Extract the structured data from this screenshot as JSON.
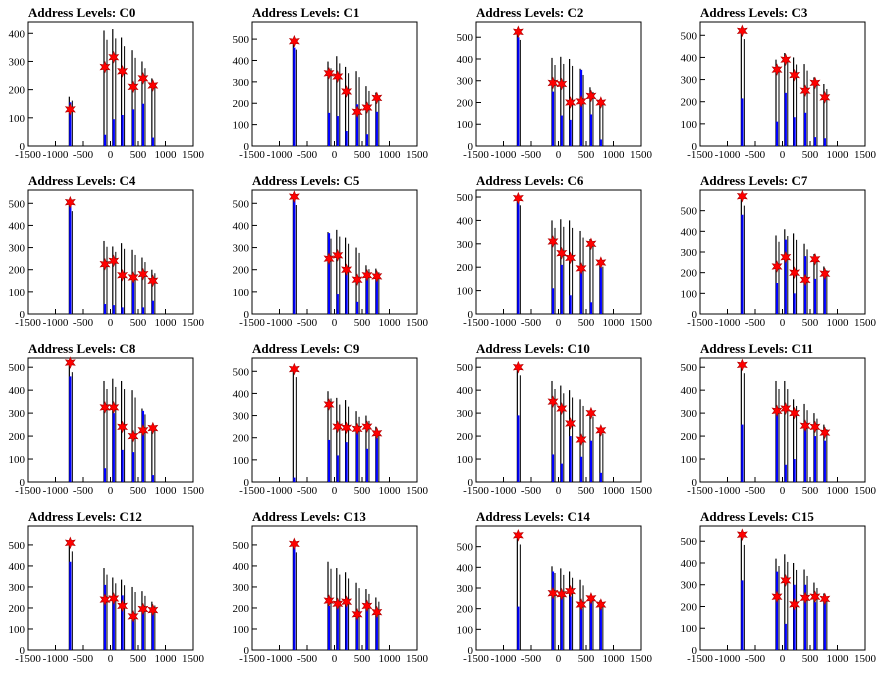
{
  "layout": {
    "rows": 4,
    "cols": 4
  },
  "style": {
    "frame_color": "#000000",
    "hist_black": "#000000",
    "hist_blue": "#0000ff",
    "marker_color": "#ff0000"
  },
  "chart_data": [
    {
      "type": "bar",
      "title": "Address Levels: C0",
      "xlim": [
        -1500,
        1500
      ],
      "ylim": [
        0,
        440
      ],
      "x_ticks": [
        -1500,
        -1000,
        -500,
        0,
        500,
        1000,
        1500
      ],
      "x_tick_labels": [
        "-1500",
        "-1000",
        "-500",
        "0",
        "500",
        "1000",
        "1500"
      ],
      "y_ticks": [
        0,
        100,
        200,
        300,
        400
      ],
      "peaks_x": [
        -730,
        -100,
        60,
        220,
        410,
        590,
        770
      ],
      "black_bars": [
        175,
        410,
        415,
        385,
        340,
        300,
        240
      ],
      "blue_bars": [
        155,
        40,
        95,
        110,
        130,
        150,
        30
      ],
      "markers": {
        "x": [
          -730,
          -100,
          60,
          220,
          410,
          590,
          770
        ],
        "y": [
          130,
          280,
          315,
          265,
          210,
          240,
          215
        ]
      }
    },
    {
      "type": "bar",
      "title": "Address Levels: C1",
      "xlim": [
        -1500,
        1500
      ],
      "ylim": [
        0,
        580
      ],
      "x_ticks": [
        -1500,
        -1000,
        -500,
        0,
        500,
        1000,
        1500
      ],
      "x_tick_labels": [
        "-1500",
        "-1000",
        "-500",
        "0",
        "500",
        "1000",
        "1500"
      ],
      "y_ticks": [
        0,
        100,
        200,
        300,
        400,
        500
      ],
      "peaks_x": [
        -730,
        -100,
        60,
        220,
        410,
        590,
        770
      ],
      "black_bars": [
        490,
        395,
        420,
        370,
        350,
        280,
        250
      ],
      "blue_bars": [
        460,
        155,
        140,
        70,
        195,
        55,
        160
      ],
      "markers": {
        "x": [
          -730,
          -100,
          60,
          220,
          410,
          590,
          770
        ],
        "y": [
          490,
          340,
          325,
          255,
          160,
          180,
          225
        ]
      }
    },
    {
      "type": "bar",
      "title": "Address Levels: C2",
      "xlim": [
        -1500,
        1500
      ],
      "ylim": [
        0,
        570
      ],
      "x_ticks": [
        -1500,
        -1000,
        -500,
        0,
        500,
        1000,
        1500
      ],
      "x_tick_labels": [
        "-1500",
        "-1000",
        "-500",
        "0",
        "500",
        "1000",
        "1500"
      ],
      "y_ticks": [
        0,
        100,
        200,
        300,
        400,
        500
      ],
      "peaks_x": [
        -730,
        -100,
        60,
        220,
        410,
        590,
        770
      ],
      "black_bars": [
        530,
        405,
        410,
        400,
        355,
        270,
        215
      ],
      "blue_bars": [
        500,
        250,
        140,
        120,
        350,
        145,
        30
      ],
      "markers": {
        "x": [
          -730,
          -100,
          60,
          220,
          410,
          590,
          770
        ],
        "y": [
          525,
          290,
          285,
          200,
          205,
          230,
          200
        ]
      }
    },
    {
      "type": "bar",
      "title": "Address Levels: C3",
      "xlim": [
        -1500,
        1500
      ],
      "ylim": [
        0,
        560
      ],
      "x_ticks": [
        -1500,
        -1000,
        -500,
        0,
        500,
        1000,
        1500
      ],
      "x_tick_labels": [
        "-1500",
        "-1000",
        "-500",
        "0",
        "500",
        "1000",
        "1500"
      ],
      "y_ticks": [
        0,
        100,
        200,
        300,
        400,
        500
      ],
      "peaks_x": [
        -730,
        -100,
        60,
        220,
        410,
        590,
        770
      ],
      "black_bars": [
        525,
        390,
        420,
        400,
        370,
        310,
        280
      ],
      "blue_bars": [
        215,
        110,
        240,
        130,
        150,
        40,
        35
      ],
      "markers": {
        "x": [
          -730,
          -100,
          60,
          220,
          410,
          590,
          770
        ],
        "y": [
          520,
          345,
          390,
          320,
          250,
          285,
          220
        ]
      }
    },
    {
      "type": "bar",
      "title": "Address Levels: C4",
      "xlim": [
        -1500,
        1500
      ],
      "ylim": [
        0,
        560
      ],
      "x_ticks": [
        -1500,
        -1000,
        -500,
        0,
        500,
        1000,
        1500
      ],
      "x_tick_labels": [
        "-1500",
        "-1000",
        "-500",
        "0",
        "500",
        "1000",
        "1500"
      ],
      "y_ticks": [
        0,
        100,
        200,
        300,
        400,
        500
      ],
      "peaks_x": [
        -730,
        -100,
        60,
        220,
        410,
        590,
        770
      ],
      "black_bars": [
        505,
        330,
        305,
        320,
        290,
        255,
        200
      ],
      "blue_bars": [
        495,
        45,
        40,
        30,
        150,
        30,
        60
      ],
      "markers": {
        "x": [
          -730,
          -100,
          60,
          220,
          410,
          590,
          770
        ],
        "y": [
          505,
          225,
          240,
          175,
          165,
          180,
          150
        ]
      }
    },
    {
      "type": "bar",
      "title": "Address Levels: C5",
      "xlim": [
        -1500,
        1500
      ],
      "ylim": [
        0,
        560
      ],
      "x_ticks": [
        -1500,
        -1000,
        -500,
        0,
        500,
        1000,
        1500
      ],
      "x_tick_labels": [
        "-1500",
        "-1000",
        "-500",
        "0",
        "500",
        "1000",
        "1500"
      ],
      "y_ticks": [
        0,
        100,
        200,
        300,
        400,
        500
      ],
      "peaks_x": [
        -730,
        -100,
        60,
        220,
        410,
        590,
        770
      ],
      "black_bars": [
        535,
        370,
        380,
        345,
        300,
        220,
        205
      ],
      "blue_bars": [
        520,
        365,
        90,
        185,
        55,
        170,
        160
      ],
      "markers": {
        "x": [
          -730,
          -100,
          60,
          220,
          410,
          590,
          770
        ],
        "y": [
          530,
          250,
          265,
          200,
          155,
          175,
          170
        ]
      }
    },
    {
      "type": "bar",
      "title": "Address Levels: C6",
      "xlim": [
        -1500,
        1500
      ],
      "ylim": [
        0,
        530
      ],
      "x_ticks": [
        -1500,
        -1000,
        -500,
        0,
        500,
        1000,
        1500
      ],
      "x_tick_labels": [
        "-1500",
        "-1000",
        "-500",
        "0",
        "500",
        "1000",
        "1500"
      ],
      "y_ticks": [
        0,
        100,
        200,
        300,
        400,
        500
      ],
      "peaks_x": [
        -730,
        -100,
        60,
        220,
        410,
        590,
        770
      ],
      "black_bars": [
        505,
        400,
        405,
        400,
        355,
        320,
        220
      ],
      "blue_bars": [
        495,
        110,
        210,
        80,
        180,
        50,
        200
      ],
      "markers": {
        "x": [
          -730,
          -100,
          60,
          220,
          410,
          590,
          770
        ],
        "y": [
          495,
          310,
          260,
          240,
          195,
          300,
          220
        ]
      }
    },
    {
      "type": "bar",
      "title": "Address Levels: C7",
      "xlim": [
        -1500,
        1500
      ],
      "ylim": [
        0,
        600
      ],
      "x_ticks": [
        -1500,
        -1000,
        -500,
        0,
        500,
        1000,
        1500
      ],
      "x_tick_labels": [
        "-1500",
        "-1000",
        "-500",
        "0",
        "500",
        "1000",
        "1500"
      ],
      "y_ticks": [
        0,
        100,
        200,
        300,
        400,
        500
      ],
      "peaks_x": [
        -730,
        -100,
        60,
        220,
        410,
        590,
        770
      ],
      "black_bars": [
        570,
        380,
        410,
        390,
        340,
        290,
        230
      ],
      "blue_bars": [
        480,
        150,
        360,
        100,
        280,
        170,
        200
      ],
      "markers": {
        "x": [
          -730,
          -100,
          60,
          220,
          410,
          590,
          770
        ],
        "y": [
          570,
          230,
          275,
          200,
          165,
          265,
          195
        ]
      }
    },
    {
      "type": "bar",
      "title": "Address Levels: C8",
      "xlim": [
        -1500,
        1500
      ],
      "ylim": [
        0,
        540
      ],
      "x_ticks": [
        -1500,
        -1000,
        -500,
        0,
        500,
        1000,
        1500
      ],
      "x_tick_labels": [
        "-1500",
        "-1000",
        "-500",
        "0",
        "500",
        "1000",
        "1500"
      ],
      "y_ticks": [
        0,
        100,
        200,
        300,
        400,
        500
      ],
      "peaks_x": [
        -730,
        -100,
        60,
        220,
        410,
        590,
        770
      ],
      "black_bars": [
        520,
        440,
        450,
        440,
        400,
        320,
        245
      ],
      "blue_bars": [
        460,
        60,
        300,
        140,
        130,
        310,
        30
      ],
      "markers": {
        "x": [
          -730,
          -100,
          60,
          220,
          410,
          590,
          770
        ],
        "y": [
          520,
          325,
          325,
          240,
          200,
          225,
          235
        ]
      }
    },
    {
      "type": "bar",
      "title": "Address Levels: C9",
      "xlim": [
        -1500,
        1500
      ],
      "ylim": [
        0,
        560
      ],
      "x_ticks": [
        -1500,
        -1000,
        -500,
        0,
        500,
        1000,
        1500
      ],
      "x_tick_labels": [
        "-1500",
        "-1000",
        "-500",
        "0",
        "500",
        "1000",
        "1500"
      ],
      "y_ticks": [
        0,
        100,
        200,
        300,
        400,
        500
      ],
      "peaks_x": [
        -730,
        -100,
        60,
        220,
        410,
        590,
        770
      ],
      "black_bars": [
        515,
        410,
        380,
        370,
        320,
        300,
        250
      ],
      "blue_bars": [
        20,
        190,
        120,
        180,
        240,
        150,
        200
      ],
      "markers": {
        "x": [
          -730,
          -100,
          60,
          220,
          410,
          590,
          770
        ],
        "y": [
          510,
          350,
          250,
          245,
          240,
          250,
          220
        ]
      }
    },
    {
      "type": "bar",
      "title": "Address Levels: C10",
      "xlim": [
        -1500,
        1500
      ],
      "ylim": [
        0,
        540
      ],
      "x_ticks": [
        -1500,
        -1000,
        -500,
        0,
        500,
        1000,
        1500
      ],
      "x_tick_labels": [
        "-1500",
        "-1000",
        "-500",
        "0",
        "500",
        "1000",
        "1500"
      ],
      "y_ticks": [
        0,
        100,
        200,
        300,
        400,
        500
      ],
      "peaks_x": [
        -730,
        -100,
        60,
        220,
        410,
        590,
        770
      ],
      "black_bars": [
        505,
        440,
        420,
        400,
        360,
        310,
        230
      ],
      "blue_bars": [
        290,
        120,
        80,
        200,
        110,
        180,
        40
      ],
      "markers": {
        "x": [
          -730,
          -100,
          60,
          220,
          410,
          590,
          770
        ],
        "y": [
          500,
          350,
          320,
          255,
          185,
          300,
          225
        ]
      }
    },
    {
      "type": "bar",
      "title": "Address Levels: C11",
      "xlim": [
        -1500,
        1500
      ],
      "ylim": [
        0,
        540
      ],
      "x_ticks": [
        -1500,
        -1000,
        -500,
        0,
        500,
        1000,
        1500
      ],
      "x_tick_labels": [
        "-1500",
        "-1000",
        "-500",
        "0",
        "500",
        "1000",
        "1500"
      ],
      "y_ticks": [
        0,
        100,
        200,
        300,
        400,
        500
      ],
      "peaks_x": [
        -730,
        -100,
        60,
        220,
        410,
        590,
        770
      ],
      "black_bars": [
        515,
        440,
        440,
        360,
        340,
        300,
        250
      ],
      "blue_bars": [
        250,
        310,
        75,
        100,
        240,
        200,
        180
      ],
      "markers": {
        "x": [
          -730,
          -100,
          60,
          220,
          410,
          590,
          770
        ],
        "y": [
          510,
          310,
          320,
          300,
          245,
          240,
          215
        ]
      }
    },
    {
      "type": "bar",
      "title": "Address Levels: C12",
      "xlim": [
        -1500,
        1500
      ],
      "ylim": [
        0,
        590
      ],
      "x_ticks": [
        -1500,
        -1000,
        -500,
        0,
        500,
        1000,
        1500
      ],
      "x_tick_labels": [
        "-1500",
        "-1000",
        "-500",
        "0",
        "500",
        "1000",
        "1500"
      ],
      "y_ticks": [
        0,
        100,
        200,
        300,
        400,
        500
      ],
      "peaks_x": [
        -730,
        -100,
        60,
        220,
        410,
        590,
        770
      ],
      "black_bars": [
        510,
        390,
        345,
        335,
        300,
        280,
        230
      ],
      "blue_bars": [
        420,
        310,
        230,
        260,
        150,
        190,
        180
      ],
      "markers": {
        "x": [
          -730,
          -100,
          60,
          220,
          410,
          590,
          770
        ],
        "y": [
          510,
          240,
          245,
          210,
          160,
          195,
          190
        ]
      }
    },
    {
      "type": "bar",
      "title": "Address Levels: C13",
      "xlim": [
        -1500,
        1500
      ],
      "ylim": [
        0,
        590
      ],
      "x_ticks": [
        -1500,
        -1000,
        -500,
        0,
        500,
        1000,
        1500
      ],
      "x_tick_labels": [
        "-1500",
        "-1000",
        "-500",
        "0",
        "500",
        "1000",
        "1500"
      ],
      "y_ticks": [
        0,
        100,
        200,
        300,
        400,
        500
      ],
      "peaks_x": [
        -730,
        -100,
        60,
        220,
        410,
        590,
        770
      ],
      "black_bars": [
        505,
        420,
        390,
        370,
        320,
        290,
        250
      ],
      "blue_bars": [
        490,
        210,
        210,
        250,
        180,
        200,
        160
      ],
      "markers": {
        "x": [
          -730,
          -100,
          60,
          220,
          410,
          590,
          770
        ],
        "y": [
          505,
          235,
          220,
          230,
          170,
          210,
          180
        ]
      }
    },
    {
      "type": "bar",
      "title": "Address Levels: C14",
      "xlim": [
        -1500,
        1500
      ],
      "ylim": [
        0,
        600
      ],
      "x_ticks": [
        -1500,
        -1000,
        -500,
        0,
        500,
        1000,
        1500
      ],
      "x_tick_labels": [
        "-1500",
        "-1000",
        "-500",
        "0",
        "500",
        "1000",
        "1500"
      ],
      "y_ticks": [
        0,
        100,
        200,
        300,
        400,
        500
      ],
      "peaks_x": [
        -730,
        -100,
        60,
        220,
        410,
        590,
        770
      ],
      "black_bars": [
        555,
        405,
        395,
        380,
        340,
        260,
        240
      ],
      "blue_bars": [
        210,
        380,
        270,
        260,
        200,
        240,
        200
      ],
      "markers": {
        "x": [
          -730,
          -100,
          60,
          220,
          410,
          590,
          770
        ],
        "y": [
          555,
          275,
          270,
          285,
          220,
          250,
          220
        ]
      }
    },
    {
      "type": "bar",
      "title": "Address Levels: C15",
      "xlim": [
        -1500,
        1500
      ],
      "ylim": [
        0,
        570
      ],
      "x_ticks": [
        -1500,
        -1000,
        -500,
        0,
        500,
        1000,
        1500
      ],
      "x_tick_labels": [
        "-1500",
        "-1000",
        "-500",
        "0",
        "500",
        "1000",
        "1500"
      ],
      "y_ticks": [
        0,
        100,
        200,
        300,
        400,
        500
      ],
      "peaks_x": [
        -730,
        -100,
        60,
        220,
        410,
        590,
        770
      ],
      "black_bars": [
        525,
        420,
        440,
        400,
        370,
        310,
        260
      ],
      "blue_bars": [
        320,
        360,
        120,
        300,
        300,
        220,
        220
      ],
      "markers": {
        "x": [
          -730,
          -100,
          60,
          220,
          410,
          590,
          770
        ],
        "y": [
          530,
          245,
          320,
          210,
          240,
          245,
          235
        ]
      }
    }
  ]
}
